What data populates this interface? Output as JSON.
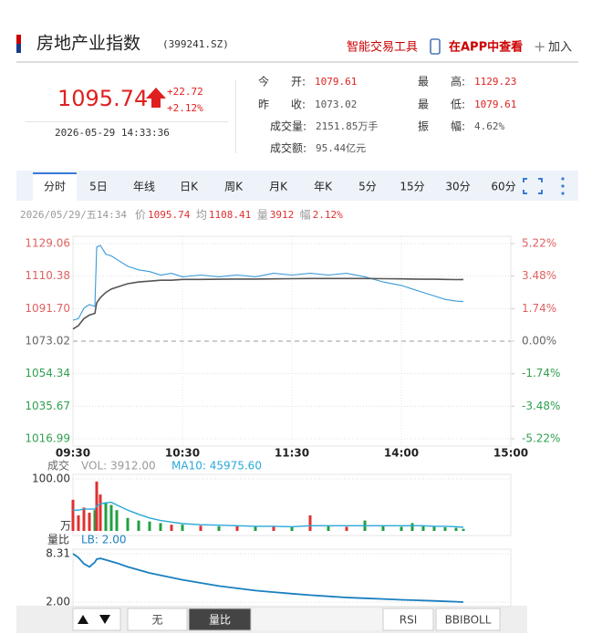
{
  "header": {
    "title": "房地产业指数",
    "code": "(399241.SZ)",
    "tool": "智能交易工具",
    "app": "在APP中查看",
    "add": "加入"
  },
  "quote": {
    "price": "1095.74",
    "change": "+22.72",
    "pct": "+2.12%",
    "time": "2026-05-29 14:33:36"
  },
  "stats": [
    {
      "label": "今　　开:",
      "value": 1079.61,
      "color": "#d22"
    },
    {
      "label": "最　　高:",
      "value": 1129.23,
      "color": "#d22"
    },
    {
      "label": "昨　　收:",
      "value": 1073.02,
      "color": "#555"
    },
    {
      "label": "最　　低:",
      "value": 1079.61,
      "color": "#d22"
    },
    {
      "label": "成交量:",
      "value": "2151.85万手",
      "color": "#555"
    },
    {
      "label": "振　　幅:",
      "value": "4.62%",
      "color": "#555"
    },
    {
      "label": "成交额:",
      "value": "95.44亿元",
      "color": "#555"
    }
  ],
  "tabs": [
    "分时",
    "5日",
    "年线",
    "日K",
    "周K",
    "月K",
    "年K",
    "5分",
    "15分",
    "30分",
    "60分"
  ],
  "info": {
    "time": "2026/05/29/五14:34",
    "items": [
      {
        "label": "价",
        "value": "1095.74"
      },
      {
        "label": "均",
        "value": "1108.41"
      },
      {
        "label": "量",
        "value": "3912"
      },
      {
        "label": "幅",
        "value": "2.12%"
      }
    ]
  },
  "chart_data": [
    {
      "type": "line",
      "xlim": [
        0,
        240
      ],
      "xticks": [
        {
          "value": 0,
          "label": "09:30"
        },
        {
          "value": 60,
          "label": "10:30"
        },
        {
          "value": 120,
          "label": "11:30"
        },
        {
          "value": 180,
          "label": "14:00"
        },
        {
          "value": 240,
          "label": "15:00"
        }
      ],
      "ylim": [
        1016.99,
        1129.06
      ],
      "yticks": [
        1129.06,
        1110.38,
        {
          "value": 1091.7,
          "label": "1091.70"
        },
        1073.02,
        1054.34,
        1035.67,
        1016.99
      ],
      "y2lim": [
        -5.22,
        5.22
      ],
      "y2ticks": [
        {
          "value": 5.22,
          "label": "5.22%"
        },
        {
          "value": 3.48,
          "label": "3.48%"
        },
        {
          "value": 1.74,
          "label": "1.74%"
        },
        {
          "value": 0,
          "label": "0.00%"
        },
        {
          "value": -1.74,
          "label": "-1.74%"
        },
        {
          "value": -3.48,
          "label": "-3.48%"
        },
        {
          "value": -5.22,
          "label": "-5.22%"
        }
      ],
      "x": [
        0,
        3,
        6,
        9,
        12,
        13,
        15,
        18,
        21,
        24,
        30,
        36,
        42,
        48,
        54,
        60,
        70,
        80,
        90,
        100,
        110,
        120,
        130,
        140,
        150,
        160,
        170,
        180,
        186,
        192,
        198,
        204,
        210,
        214
      ],
      "series": [
        {
          "color": "#3a9ad9",
          "values": [
            1085,
            1086,
            1092,
            1094,
            1093,
            1127,
            1128,
            1123,
            1122,
            1120,
            1116,
            1114,
            1113,
            1111,
            1112,
            1110,
            1111,
            1110,
            1111,
            1110,
            1112,
            1111,
            1112,
            1111,
            1112,
            1110,
            1107,
            1105,
            1103,
            1101,
            1099,
            1097,
            1096,
            1095.74
          ]
        },
        {
          "color": "#555555",
          "values": [
            1080,
            1082,
            1086,
            1088,
            1089,
            1095,
            1098,
            1101,
            1103,
            1104,
            1106,
            1107,
            1107.5,
            1108,
            1108,
            1108.5,
            1108.5,
            1108.6,
            1108.7,
            1108.7,
            1108.8,
            1108.9,
            1109,
            1109,
            1109,
            1109,
            1108.9,
            1108.8,
            1108.7,
            1108.6,
            1108.6,
            1108.5,
            1108.4,
            1108.41
          ]
        }
      ]
    },
    {
      "type": "bar",
      "title": "成交",
      "vol_label": "VOL: 3912.00",
      "ma_label": "MA10: 45975.60",
      "unit": "万",
      "xlim": [
        0,
        240
      ],
      "ylim": [
        0,
        100
      ],
      "yticks": [
        {
          "value": 100,
          "label": "100.00"
        }
      ],
      "x": [
        0,
        3,
        6,
        9,
        12,
        13,
        15,
        18,
        21,
        24,
        30,
        36,
        42,
        48,
        54,
        60,
        70,
        80,
        90,
        100,
        110,
        120,
        130,
        140,
        150,
        160,
        170,
        180,
        186,
        192,
        198,
        204,
        210,
        214
      ],
      "values": [
        60,
        30,
        45,
        35,
        40,
        95,
        70,
        55,
        50,
        40,
        25,
        20,
        18,
        15,
        12,
        12,
        10,
        9,
        9,
        8,
        8,
        7,
        30,
        9,
        8,
        20,
        9,
        8,
        15,
        10,
        8,
        7,
        6,
        4
      ],
      "up_color": "#e03030",
      "down_color": "#20a040",
      "ma": {
        "color": "#2aa8d8",
        "values": [
          40,
          40,
          42,
          42,
          42,
          48,
          52,
          54,
          55,
          50,
          40,
          32,
          25,
          20,
          17,
          14,
          12,
          11,
          10,
          9,
          9,
          8,
          10,
          10,
          10,
          10,
          10,
          10,
          10,
          10,
          9,
          9,
          8,
          7
        ]
      }
    },
    {
      "type": "line",
      "title": "量比",
      "lb_label": "LB: 2.00",
      "xlim": [
        0,
        240
      ],
      "ylim": [
        2,
        8.31
      ],
      "yticks": [
        8.31,
        {
          "value": 2,
          "label": "2.00"
        }
      ],
      "x": [
        0,
        3,
        6,
        9,
        12,
        13,
        15,
        18,
        21,
        24,
        30,
        36,
        42,
        48,
        54,
        60,
        70,
        80,
        90,
        100,
        110,
        120,
        130,
        140,
        150,
        160,
        170,
        180,
        186,
        192,
        198,
        204,
        210,
        214
      ],
      "series": [
        {
          "color": "#1a7fc0",
          "values": [
            8.31,
            7.8,
            7.0,
            6.6,
            7.2,
            7.6,
            7.7,
            7.5,
            7.3,
            7.1,
            6.6,
            6.2,
            5.8,
            5.5,
            5.2,
            4.9,
            4.5,
            4.1,
            3.8,
            3.5,
            3.3,
            3.1,
            2.9,
            2.75,
            2.6,
            2.5,
            2.4,
            2.3,
            2.25,
            2.2,
            2.15,
            2.1,
            2.05,
            2.0
          ]
        }
      ]
    }
  ],
  "buttons": [
    "无",
    "量比",
    "RSI",
    "BBIBOLL"
  ]
}
